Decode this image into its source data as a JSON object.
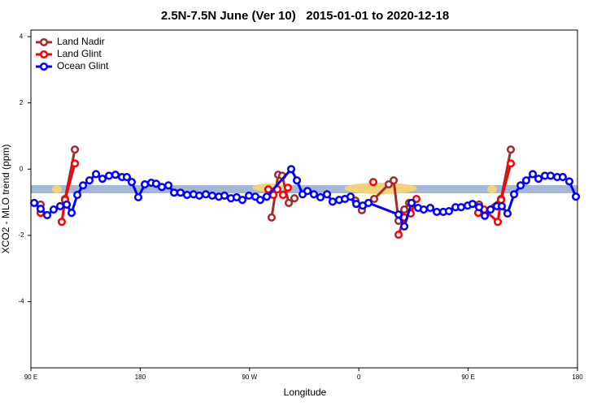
{
  "chart_data": {
    "type": "line",
    "title": "2.5N-7.5N June (Ver 10)   2015-01-01 to 2020-12-18",
    "xlabel": "Longitude",
    "ylabel": "XCO2 - MLO trend (ppm)",
    "xlim": [
      90,
      540
    ],
    "ylim": [
      -6,
      4.2
    ],
    "xticks": [
      {
        "value": 90,
        "label": "90 E"
      },
      {
        "value": 180,
        "label": "180"
      },
      {
        "value": 270,
        "label": "90 W"
      },
      {
        "value": 360,
        "label": "0"
      },
      {
        "value": 450,
        "label": "90 E"
      },
      {
        "value": 540,
        "label": "180"
      }
    ],
    "yticks": [
      4,
      2,
      0,
      -2,
      -4
    ],
    "legend": "top-left",
    "series": [
      {
        "name": "Land Nadir",
        "color": "#a52a2a",
        "x": [
          98.0,
          null,
          118.1,
          126.2,
          null,
          288.2,
          293.6,
          296.9,
          302.3,
          307.0,
          null,
          357.2,
          362.5,
          372.6,
          384.6,
          388.7,
          392.7,
          397.4,
          401.4,
          null,
          459.0,
          463.7,
          477.1,
          485.1
        ],
        "values": [
          -1.07,
          null,
          -0.9,
          0.59,
          null,
          -1.46,
          -0.17,
          -0.2,
          -1.02,
          -0.88,
          null,
          -0.95,
          -1.24,
          -0.9,
          -0.46,
          -0.34,
          -1.56,
          -1.22,
          -1.02,
          null,
          -1.07,
          -1.27,
          -0.9,
          0.59
        ]
      },
      {
        "name": "Land Glint",
        "color": "#ff0000",
        "x": [
          98.0,
          null,
          115.4,
          118.1,
          126.2,
          null,
          285.5,
          289.6,
          292.9,
          297.6,
          301.6,
          null,
          371.9,
          null,
          392.7,
          397.4,
          402.7,
          407.4,
          null,
          458.3,
          463.0,
          474.4,
          477.1,
          485.1
        ],
        "values": [
          -1.32,
          null,
          -1.59,
          -0.93,
          0.17,
          null,
          -0.61,
          -0.78,
          -0.61,
          -0.78,
          -0.56,
          null,
          -0.39,
          null,
          -1.98,
          -1.46,
          -1.34,
          -0.9,
          null,
          -1.32,
          -1.22,
          -1.59,
          -0.93,
          0.17
        ]
      },
      {
        "name": "Ocean Glint",
        "color": "#0000ff",
        "x": [
          92.7,
          98.0,
          103.4,
          108.7,
          114.1,
          119.5,
          123.5,
          128.2,
          132.9,
          138.2,
          143.6,
          148.9,
          154.3,
          159.6,
          165.0,
          169.0,
          173.0,
          178.4,
          183.8,
          189.1,
          193.1,
          197.8,
          203.2,
          207.9,
          213.2,
          218.6,
          223.9,
          228.6,
          234.0,
          239.3,
          244.7,
          249.4,
          254.7,
          259.4,
          264.1,
          269.5,
          274.8,
          278.8,
          284.2,
          304.3,
          309.0,
          313.7,
          317.7,
          323.0,
          328.4,
          333.8,
          338.4,
          343.8,
          348.5,
          353.2,
          357.9,
          363.2,
          367.9,
          392.7,
          397.4,
          403.4,
          408.8,
          413.4,
          418.8,
          424.2,
          429.5,
          434.2,
          439.6,
          444.2,
          449.6,
          453.6,
          459.0,
          463.7,
          468.4,
          473.7,
          477.7,
          482.4,
          487.8,
          493.2,
          497.8,
          503.2,
          507.9,
          513.2,
          517.9,
          523.3,
          527.9,
          533.3,
          538.7
        ],
        "values": [
          -1.02,
          -1.2,
          -1.39,
          -1.22,
          -1.12,
          -1.07,
          -1.32,
          -0.78,
          -0.49,
          -0.34,
          -0.15,
          -0.29,
          -0.2,
          -0.17,
          -0.24,
          -0.24,
          -0.39,
          -0.85,
          -0.46,
          -0.41,
          -0.44,
          -0.54,
          -0.49,
          -0.71,
          -0.71,
          -0.78,
          -0.76,
          -0.8,
          -0.76,
          -0.8,
          -0.83,
          -0.8,
          -0.88,
          -0.85,
          -0.93,
          -0.8,
          -0.83,
          -0.93,
          -0.83,
          0.0,
          -0.34,
          -0.76,
          -0.66,
          -0.76,
          -0.85,
          -0.76,
          -0.98,
          -0.93,
          -0.9,
          -0.83,
          -1.05,
          -1.1,
          -1.02,
          -1.37,
          -1.73,
          -1.02,
          -1.17,
          -1.22,
          -1.17,
          -1.29,
          -1.29,
          -1.27,
          -1.15,
          -1.15,
          -1.1,
          -1.05,
          -1.15,
          -1.41,
          -1.22,
          -1.12,
          -1.12,
          -1.34,
          -0.76,
          -0.49,
          -0.34,
          -0.15,
          -0.29,
          -0.2,
          -0.2,
          -0.24,
          -0.24,
          -0.37,
          -0.83
        ]
      }
    ]
  }
}
